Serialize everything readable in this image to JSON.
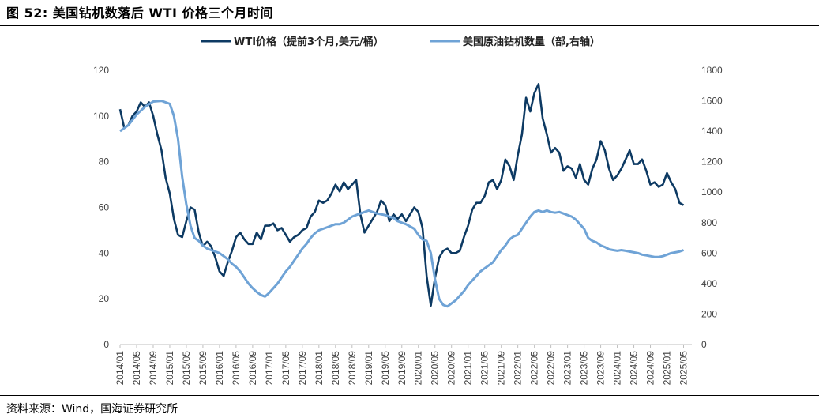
{
  "figure": {
    "title": "图 52:  美国钻机数落后 WTI 价格三个月时间",
    "source": "资料来源：Wind，国海证券研究所"
  },
  "colors": {
    "wti": "#0d3a63",
    "rig": "#6fa3d6",
    "axis": "#bfbfbf",
    "tick_text": "#404040"
  },
  "chart_data": {
    "type": "line",
    "xlim": [
      "2014-01",
      "2025-07"
    ],
    "x_ticks": [
      "2014/01",
      "2014/05",
      "2014/09",
      "2015/01",
      "2015/05",
      "2015/09",
      "2016/01",
      "2016/05",
      "2016/09",
      "2017/01",
      "2017/05",
      "2017/09",
      "2018/01",
      "2018/05",
      "2018/09",
      "2019/01",
      "2019/05",
      "2019/09",
      "2020/01",
      "2020/05",
      "2020/09",
      "2021/01",
      "2021/05",
      "2021/09",
      "2022/01",
      "2022/05",
      "2022/09",
      "2023/01",
      "2023/05",
      "2023/09",
      "2024/01",
      "2024/05",
      "2024/09",
      "2025/01",
      "2025/05"
    ],
    "y_left": {
      "ylim": [
        0,
        120
      ],
      "ticks": [
        "0",
        "20",
        "40",
        "60",
        "80",
        "100",
        "120"
      ]
    },
    "y_right": {
      "ylim": [
        0,
        1800
      ],
      "ticks": [
        "0",
        "200",
        "400",
        "600",
        "800",
        "1000",
        "1200",
        "1400",
        "1600",
        "1800"
      ]
    },
    "series": [
      {
        "name": "WTI价格（提前3个月,美元/桶）",
        "axis": "left",
        "points": [
          [
            "2014-01",
            103
          ],
          [
            "2014-02",
            95
          ],
          [
            "2014-03",
            96
          ],
          [
            "2014-04",
            100
          ],
          [
            "2014-05",
            102
          ],
          [
            "2014-06",
            106
          ],
          [
            "2014-07",
            104
          ],
          [
            "2014-08",
            106
          ],
          [
            "2014-09",
            100
          ],
          [
            "2014-10",
            92
          ],
          [
            "2014-11",
            85
          ],
          [
            "2014-12",
            73
          ],
          [
            "2015-01",
            66
          ],
          [
            "2015-02",
            55
          ],
          [
            "2015-03",
            48
          ],
          [
            "2015-04",
            47
          ],
          [
            "2015-05",
            54
          ],
          [
            "2015-06",
            60
          ],
          [
            "2015-07",
            59
          ],
          [
            "2015-08",
            49
          ],
          [
            "2015-09",
            43
          ],
          [
            "2015-10",
            45
          ],
          [
            "2015-11",
            43
          ],
          [
            "2015-12",
            38
          ],
          [
            "2016-01",
            32
          ],
          [
            "2016-02",
            30
          ],
          [
            "2016-03",
            36
          ],
          [
            "2016-04",
            41
          ],
          [
            "2016-05",
            47
          ],
          [
            "2016-06",
            49
          ],
          [
            "2016-07",
            46
          ],
          [
            "2016-08",
            44
          ],
          [
            "2016-09",
            44
          ],
          [
            "2016-10",
            49
          ],
          [
            "2016-11",
            46
          ],
          [
            "2016-12",
            52
          ],
          [
            "2017-01",
            52
          ],
          [
            "2017-02",
            53
          ],
          [
            "2017-03",
            50
          ],
          [
            "2017-04",
            51
          ],
          [
            "2017-05",
            48
          ],
          [
            "2017-06",
            45
          ],
          [
            "2017-07",
            47
          ],
          [
            "2017-08",
            48
          ],
          [
            "2017-09",
            50
          ],
          [
            "2017-10",
            51
          ],
          [
            "2017-11",
            56
          ],
          [
            "2017-12",
            58
          ],
          [
            "2018-01",
            63
          ],
          [
            "2018-02",
            62
          ],
          [
            "2018-03",
            63
          ],
          [
            "2018-04",
            66
          ],
          [
            "2018-05",
            70
          ],
          [
            "2018-06",
            67
          ],
          [
            "2018-07",
            71
          ],
          [
            "2018-08",
            68
          ],
          [
            "2018-09",
            70
          ],
          [
            "2018-10",
            72
          ],
          [
            "2018-11",
            57
          ],
          [
            "2018-12",
            49
          ],
          [
            "2019-01",
            52
          ],
          [
            "2019-02",
            55
          ],
          [
            "2019-03",
            58
          ],
          [
            "2019-04",
            63
          ],
          [
            "2019-05",
            61
          ],
          [
            "2019-06",
            54
          ],
          [
            "2019-07",
            57
          ],
          [
            "2019-08",
            55
          ],
          [
            "2019-09",
            57
          ],
          [
            "2019-10",
            54
          ],
          [
            "2019-11",
            57
          ],
          [
            "2019-12",
            60
          ],
          [
            "2020-01",
            58
          ],
          [
            "2020-02",
            51
          ],
          [
            "2020-03",
            30
          ],
          [
            "2020-04",
            17
          ],
          [
            "2020-05",
            29
          ],
          [
            "2020-06",
            38
          ],
          [
            "2020-07",
            41
          ],
          [
            "2020-08",
            42
          ],
          [
            "2020-09",
            40
          ],
          [
            "2020-10",
            40
          ],
          [
            "2020-11",
            41
          ],
          [
            "2020-12",
            47
          ],
          [
            "2021-01",
            52
          ],
          [
            "2021-02",
            59
          ],
          [
            "2021-03",
            62
          ],
          [
            "2021-04",
            62
          ],
          [
            "2021-05",
            65
          ],
          [
            "2021-06",
            71
          ],
          [
            "2021-07",
            72
          ],
          [
            "2021-08",
            68
          ],
          [
            "2021-09",
            72
          ],
          [
            "2021-10",
            81
          ],
          [
            "2021-11",
            78
          ],
          [
            "2021-12",
            72
          ],
          [
            "2022-01",
            83
          ],
          [
            "2022-02",
            92
          ],
          [
            "2022-03",
            108
          ],
          [
            "2022-04",
            102
          ],
          [
            "2022-05",
            110
          ],
          [
            "2022-06",
            114
          ],
          [
            "2022-07",
            99
          ],
          [
            "2022-08",
            92
          ],
          [
            "2022-09",
            84
          ],
          [
            "2022-10",
            86
          ],
          [
            "2022-11",
            84
          ],
          [
            "2022-12",
            76
          ],
          [
            "2023-01",
            78
          ],
          [
            "2023-02",
            77
          ],
          [
            "2023-03",
            73
          ],
          [
            "2023-04",
            79
          ],
          [
            "2023-05",
            72
          ],
          [
            "2023-06",
            70
          ],
          [
            "2023-07",
            77
          ],
          [
            "2023-08",
            81
          ],
          [
            "2023-09",
            89
          ],
          [
            "2023-10",
            85
          ],
          [
            "2023-11",
            77
          ],
          [
            "2023-12",
            72
          ],
          [
            "2024-01",
            74
          ],
          [
            "2024-02",
            77
          ],
          [
            "2024-03",
            81
          ],
          [
            "2024-04",
            85
          ],
          [
            "2024-05",
            79
          ],
          [
            "2024-06",
            79
          ],
          [
            "2024-07",
            81
          ],
          [
            "2024-08",
            76
          ],
          [
            "2024-09",
            70
          ],
          [
            "2024-10",
            71
          ],
          [
            "2024-11",
            69
          ],
          [
            "2024-12",
            70
          ],
          [
            "2025-01",
            75
          ],
          [
            "2025-02",
            71
          ],
          [
            "2025-03",
            68
          ],
          [
            "2025-04",
            62
          ],
          [
            "2025-05",
            61
          ]
        ]
      },
      {
        "name": "美国原油钻机数量（部,右轴）",
        "axis": "right",
        "points": [
          [
            "2014-01",
            1400
          ],
          [
            "2014-03",
            1440
          ],
          [
            "2014-05",
            1510
          ],
          [
            "2014-07",
            1560
          ],
          [
            "2014-09",
            1595
          ],
          [
            "2014-11",
            1600
          ],
          [
            "2015-01",
            1580
          ],
          [
            "2015-02",
            1500
          ],
          [
            "2015-03",
            1350
          ],
          [
            "2015-04",
            1100
          ],
          [
            "2015-05",
            920
          ],
          [
            "2015-06",
            780
          ],
          [
            "2015-07",
            700
          ],
          [
            "2015-08",
            680
          ],
          [
            "2015-09",
            650
          ],
          [
            "2015-10",
            630
          ],
          [
            "2015-11",
            620
          ],
          [
            "2015-12",
            610
          ],
          [
            "2016-01",
            600
          ],
          [
            "2016-02",
            580
          ],
          [
            "2016-03",
            560
          ],
          [
            "2016-04",
            530
          ],
          [
            "2016-05",
            510
          ],
          [
            "2016-06",
            480
          ],
          [
            "2016-07",
            440
          ],
          [
            "2016-08",
            400
          ],
          [
            "2016-09",
            370
          ],
          [
            "2016-10",
            345
          ],
          [
            "2016-11",
            325
          ],
          [
            "2016-12",
            315
          ],
          [
            "2017-01",
            340
          ],
          [
            "2017-02",
            370
          ],
          [
            "2017-03",
            400
          ],
          [
            "2017-04",
            440
          ],
          [
            "2017-05",
            480
          ],
          [
            "2017-06",
            510
          ],
          [
            "2017-07",
            550
          ],
          [
            "2017-08",
            590
          ],
          [
            "2017-09",
            630
          ],
          [
            "2017-10",
            660
          ],
          [
            "2017-11",
            700
          ],
          [
            "2017-12",
            730
          ],
          [
            "2018-01",
            750
          ],
          [
            "2018-02",
            760
          ],
          [
            "2018-03",
            770
          ],
          [
            "2018-04",
            780
          ],
          [
            "2018-05",
            790
          ],
          [
            "2018-06",
            790
          ],
          [
            "2018-07",
            800
          ],
          [
            "2018-08",
            820
          ],
          [
            "2018-09",
            840
          ],
          [
            "2018-10",
            850
          ],
          [
            "2018-11",
            860
          ],
          [
            "2018-12",
            870
          ],
          [
            "2019-01",
            880
          ],
          [
            "2019-02",
            870
          ],
          [
            "2019-03",
            860
          ],
          [
            "2019-04",
            855
          ],
          [
            "2019-05",
            850
          ],
          [
            "2019-06",
            840
          ],
          [
            "2019-07",
            830
          ],
          [
            "2019-08",
            810
          ],
          [
            "2019-09",
            800
          ],
          [
            "2019-10",
            790
          ],
          [
            "2019-11",
            775
          ],
          [
            "2019-12",
            760
          ],
          [
            "2020-01",
            720
          ],
          [
            "2020-02",
            690
          ],
          [
            "2020-03",
            680
          ],
          [
            "2020-04",
            600
          ],
          [
            "2020-05",
            430
          ],
          [
            "2020-06",
            300
          ],
          [
            "2020-07",
            260
          ],
          [
            "2020-08",
            250
          ],
          [
            "2020-09",
            270
          ],
          [
            "2020-10",
            290
          ],
          [
            "2020-11",
            320
          ],
          [
            "2020-12",
            350
          ],
          [
            "2021-01",
            390
          ],
          [
            "2021-02",
            420
          ],
          [
            "2021-03",
            450
          ],
          [
            "2021-04",
            480
          ],
          [
            "2021-05",
            500
          ],
          [
            "2021-06",
            520
          ],
          [
            "2021-07",
            540
          ],
          [
            "2021-08",
            580
          ],
          [
            "2021-09",
            620
          ],
          [
            "2021-10",
            650
          ],
          [
            "2021-11",
            690
          ],
          [
            "2021-12",
            710
          ],
          [
            "2022-01",
            720
          ],
          [
            "2022-02",
            760
          ],
          [
            "2022-03",
            800
          ],
          [
            "2022-04",
            840
          ],
          [
            "2022-05",
            870
          ],
          [
            "2022-06",
            880
          ],
          [
            "2022-07",
            870
          ],
          [
            "2022-08",
            880
          ],
          [
            "2022-09",
            870
          ],
          [
            "2022-10",
            865
          ],
          [
            "2022-11",
            870
          ],
          [
            "2022-12",
            860
          ],
          [
            "2023-01",
            850
          ],
          [
            "2023-02",
            840
          ],
          [
            "2023-03",
            820
          ],
          [
            "2023-04",
            790
          ],
          [
            "2023-05",
            760
          ],
          [
            "2023-06",
            700
          ],
          [
            "2023-07",
            680
          ],
          [
            "2023-08",
            670
          ],
          [
            "2023-09",
            650
          ],
          [
            "2023-10",
            640
          ],
          [
            "2023-11",
            625
          ],
          [
            "2023-12",
            620
          ],
          [
            "2024-01",
            615
          ],
          [
            "2024-02",
            620
          ],
          [
            "2024-03",
            615
          ],
          [
            "2024-04",
            610
          ],
          [
            "2024-05",
            605
          ],
          [
            "2024-06",
            600
          ],
          [
            "2024-07",
            590
          ],
          [
            "2024-08",
            585
          ],
          [
            "2024-09",
            580
          ],
          [
            "2024-10",
            575
          ],
          [
            "2024-11",
            575
          ],
          [
            "2024-12",
            580
          ],
          [
            "2025-01",
            590
          ],
          [
            "2025-02",
            600
          ],
          [
            "2025-03",
            605
          ],
          [
            "2025-04",
            610
          ],
          [
            "2025-05",
            620
          ]
        ]
      }
    ],
    "legend_position": "top"
  }
}
